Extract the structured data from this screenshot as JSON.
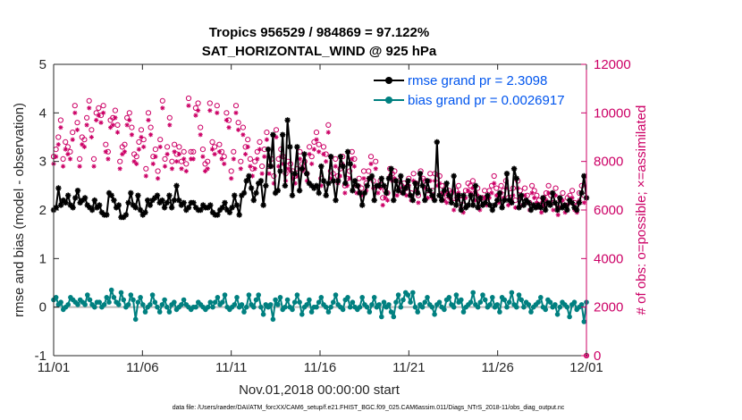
{
  "chart_data": {
    "type": "line",
    "title": "Tropics 956529 / 984869 = 97.122%",
    "subtitle": "SAT_HORIZONTAL_WIND @ 925 hPa",
    "xlabel": "Nov.01,2018 00:00:00 start",
    "ylabel": "rmse and bias (model - observation)",
    "y2label": "# of obs: o=possible; ×=assimilated",
    "footnote": "data file: /Users/raeder/DAI/ATM_forcXX/CAM6_setup/f.e21.FHIST_BGC.f09_025.CAM6assim.011/Diags_NTrS_2018-11/obs_diag_output.nc",
    "xlim": [
      0,
      30
    ],
    "ylim": [
      -1,
      5
    ],
    "y2lim": [
      0,
      12000
    ],
    "x_ticks": [
      0,
      5,
      10,
      15,
      20,
      25,
      30
    ],
    "x_tick_labels": [
      "11/01",
      "11/06",
      "11/11",
      "11/16",
      "11/21",
      "11/26",
      "12/01"
    ],
    "y_ticks": [
      -1,
      0,
      1,
      2,
      3,
      4,
      5
    ],
    "y_tick_labels": [
      "-1",
      "0",
      "1",
      "2",
      "3",
      "4",
      "5"
    ],
    "y2_ticks": [
      0,
      2000,
      4000,
      6000,
      8000,
      10000,
      12000
    ],
    "y2_tick_labels": [
      "0",
      "2000",
      "4000",
      "6000",
      "8000",
      "10000",
      "12000"
    ],
    "zero_line": 0,
    "legend": {
      "location": "top-right",
      "entries": [
        "rmse grand pr = 2.3098",
        "bias grand pr = 0.0026917"
      ]
    },
    "colors": {
      "rmse": "#000000",
      "bias": "#008080",
      "obs": "#cc0066",
      "legend_text": "#0055ee",
      "zero_line": "#bbbbbb"
    },
    "series": [
      {
        "name": "rmse",
        "axis": "left",
        "marker": "asterisk",
        "values": [
          2.0,
          2.05,
          2.45,
          2.1,
          2.2,
          2.15,
          2.3,
          2.1,
          2.05,
          2.25,
          2.4,
          2.15,
          2.2,
          2.25,
          2.1,
          2.05,
          2.0,
          2.2,
          2.05,
          2.1,
          1.95,
          1.9,
          1.9,
          2.35,
          2.3,
          2.2,
          2.05,
          2.1,
          1.85,
          1.85,
          1.9,
          2.15,
          2.35,
          2.1,
          2.05,
          2.3,
          2.0,
          1.9,
          1.95,
          2.2,
          2.1,
          2.2,
          2.25,
          2.3,
          2.15,
          2.2,
          2.05,
          2.15,
          2.3,
          2.05,
          2.2,
          2.5,
          2.2,
          2.1,
          2.15,
          2.0,
          2.05,
          2.15,
          2.15,
          2.05,
          2.0,
          2.0,
          2.1,
          2.05,
          2.05,
          2.1,
          1.95,
          1.9,
          1.9,
          2.0,
          2.05,
          2.15,
          2.0,
          1.95,
          2.05,
          2.3,
          2.1,
          1.9,
          2.3,
          2.35,
          2.6,
          2.7,
          2.45,
          2.2,
          2.35,
          2.55,
          2.6,
          2.1,
          2.5,
          3.25,
          2.9,
          3.55,
          2.35,
          2.4,
          2.8,
          3.55,
          2.5,
          3.85,
          3.3,
          2.3,
          2.75,
          3.3,
          2.4,
          2.85,
          3.15,
          2.75,
          2.55,
          2.5,
          2.45,
          2.5,
          2.35,
          2.9,
          2.6,
          2.3,
          2.55,
          3.1,
          2.6,
          2.2,
          2.6,
          3.1,
          2.9,
          2.55,
          3.2,
          2.95,
          2.4,
          2.6,
          2.5,
          2.35,
          2.1,
          2.35,
          2.5,
          2.65,
          2.7,
          2.2,
          2.5,
          2.5,
          2.65,
          2.5,
          2.35,
          2.65,
          2.85,
          2.2,
          2.6,
          2.4,
          2.7,
          2.35,
          2.45,
          2.6,
          2.3,
          2.2,
          2.55,
          2.35,
          2.75,
          2.5,
          2.2,
          2.6,
          2.4,
          2.3,
          2.2,
          3.4,
          2.3,
          2.2,
          2.4,
          2.55,
          2.3,
          2.15,
          2.7,
          2.1,
          2.3,
          2.0,
          2.3,
          2.05,
          2.1,
          2.3,
          2.1,
          2.5,
          2.05,
          2.25,
          2.1,
          2.15,
          2.3,
          2.1,
          2.0,
          2.1,
          2.2,
          2.35,
          2.05,
          2.2,
          2.75,
          2.2,
          2.15,
          2.85,
          2.65,
          2.05,
          2.3,
          2.1,
          2.2,
          2.15,
          2.0,
          2.1,
          2.05,
          2.1,
          2.05,
          2.25,
          2.0,
          2.15,
          2.1,
          2.35,
          2.15,
          2.0,
          2.25,
          2.05,
          2.1,
          2.0,
          2.2,
          2.15,
          2.05,
          2.0,
          2.15,
          2.35,
          2.7,
          2.25
        ]
      },
      {
        "name": "bias",
        "axis": "left",
        "marker": "circle",
        "values": [
          0.15,
          0.2,
          0.05,
          0.1,
          -0.05,
          0.0,
          0.05,
          0.2,
          0.15,
          0.1,
          0.05,
          0.15,
          0.1,
          0.05,
          0.25,
          0.15,
          0.05,
          0.0,
          0.1,
          0.1,
          0.0,
          0.05,
          0.2,
          0.1,
          0.35,
          0.2,
          0.1,
          0.05,
          0.3,
          0.15,
          0.0,
          0.05,
          0.25,
          0.15,
          -0.25,
          0.1,
          0.2,
          0.05,
          -0.1,
          0.0,
          0.05,
          0.25,
          0.1,
          0.0,
          -0.1,
          0.05,
          0.15,
          0.0,
          -0.1,
          0.05,
          0.1,
          -0.05,
          0.0,
          0.05,
          0.15,
          0.05,
          0.0,
          -0.05,
          0.0,
          0.0,
          0.1,
          0.05,
          0.0,
          -0.05,
          0.0,
          0.1,
          0.0,
          0.1,
          0.2,
          0.05,
          0.1,
          0.25,
          0.0,
          -0.05,
          0.0,
          0.05,
          0.2,
          0.0,
          0.05,
          -0.1,
          0.0,
          0.25,
          0.05,
          0.0,
          0.15,
          0.25,
          0.0,
          -0.15,
          0.05,
          0.0,
          0.05,
          -0.25,
          0.15,
          0.05,
          0.2,
          -0.05,
          0.0,
          0.15,
          0.0,
          -0.05,
          0.1,
          0.25,
          0.1,
          -0.15,
          0.0,
          0.05,
          0.15,
          -0.1,
          0.0,
          0.0,
          0.1,
          0.2,
          0.05,
          0.0,
          -0.1,
          0.0,
          0.1,
          0.25,
          0.05,
          0.0,
          -0.05,
          0.15,
          0.2,
          0.0,
          0.1,
          0.0,
          -0.05,
          0.0,
          0.2,
          0.05,
          0.0,
          -0.1,
          0.05,
          0.2,
          0.0,
          0.05,
          -0.2,
          0.1,
          0.0,
          0.05,
          -0.1,
          -0.2,
          0.1,
          0.25,
          0.0,
          0.15,
          0.3,
          0.25,
          0.1,
          0.3,
          0.0,
          -0.1,
          0.05,
          0.0,
          0.1,
          0.2,
          0.05,
          0.0,
          -0.15,
          0.05,
          0.1,
          0.0,
          -0.05,
          0.15,
          0.2,
          0.05,
          0.0,
          0.25,
          0.1,
          0.15,
          -0.1,
          0.0,
          0.05,
          0.1,
          0.3,
          0.05,
          0.0,
          0.1,
          0.25,
          0.15,
          0.0,
          0.05,
          0.2,
          0.0,
          0.05,
          -0.1,
          0.2,
          0.15,
          0.0,
          0.1,
          0.3,
          0.05,
          0.0,
          0.25,
          0.15,
          0.0,
          0.1,
          0.05,
          -0.1,
          0.0,
          0.05,
          0.1,
          0.2,
          0.0,
          -0.05,
          0.15,
          0.1,
          0.0,
          0.05,
          -0.15,
          0.0,
          0.1,
          0.05,
          0.0,
          -0.2,
          0.05,
          0.1,
          -0.05,
          0.0,
          0.05,
          -0.3,
          0.1
        ]
      },
      {
        "name": "obs possible",
        "axis": "right",
        "marker": "circle-open",
        "values": [
          8200,
          8500,
          9000,
          9700,
          8100,
          8800,
          8600,
          8400,
          9200,
          10300,
          9600,
          8100,
          9000,
          8900,
          9800,
          10500,
          9300,
          8100,
          10000,
          10200,
          9900,
          10300,
          8700,
          8400,
          9700,
          9800,
          10100,
          9500,
          8000,
          8600,
          8700,
          9800,
          10000,
          9400,
          8300,
          8200,
          8800,
          9300,
          8900,
          7700,
          10000,
          9400,
          8200,
          8500,
          7600,
          8900,
          10500,
          8100,
          8600,
          9800,
          8000,
          8700,
          8300,
          8600,
          8000,
          8400,
          7900,
          10600,
          8400,
          8400,
          10200,
          10400,
          9400,
          8500,
          7900,
          8000,
          10400,
          8800,
          8600,
          10300,
          8700,
          8400,
          8200,
          10000,
          9700,
          7600,
          8400,
          10300,
          9600,
          8000,
          9400,
          8600,
          8900,
          8100,
          7700,
          8000,
          8400,
          8800,
          7800,
          8500,
          9200,
          7800,
          8100,
          7400,
          9300,
          8100,
          8500,
          8200,
          7500,
          8000,
          7900,
          7600,
          7400,
          7700,
          8400,
          7900,
          8000,
          7500,
          8600,
          8200,
          8800,
          9200,
          8700,
          7300,
          8600,
          8300,
          9500,
          7600,
          7500,
          8100,
          7400,
          7700,
          8200,
          7000,
          7300,
          7600,
          8400,
          8100,
          7000,
          7300,
          6900,
          7600,
          7100,
          7600,
          8200,
          7200,
          8000,
          7000,
          7200,
          6500,
          6800,
          6700,
          7700,
          7500,
          7600,
          6900,
          7200,
          7000,
          7100,
          6900,
          7300,
          6700,
          7500,
          7100,
          6600,
          7600,
          7300,
          7200,
          6800,
          7500,
          6800,
          7500,
          7300,
          7400,
          7000,
          6700,
          6600,
          6800,
          6700,
          6300,
          6800,
          7000,
          6400,
          6200,
          6800,
          7100,
          7000,
          7200,
          6700,
          6900,
          6300,
          6500,
          6800,
          6500,
          6800,
          7000,
          7400,
          6900,
          6600,
          7000,
          6800,
          7200,
          6500,
          6700,
          6900,
          6400,
          7200,
          6800,
          6500,
          6900,
          6600,
          6300,
          7000,
          6800,
          6600,
          6400,
          6200,
          6500,
          6700,
          7000,
          6600,
          6300,
          6900,
          6100,
          6400,
          6700,
          6200,
          6500,
          6600,
          6800,
          6300,
          6200,
          6700,
          7000,
          6600,
          0
        ]
      },
      {
        "name": "obs assimilated",
        "axis": "right",
        "marker": "asterisk",
        "values": [
          7900,
          8200,
          8700,
          9400,
          7800,
          8500,
          8300,
          8100,
          8900,
          10000,
          9300,
          7800,
          8700,
          8600,
          9500,
          10200,
          9000,
          7800,
          9700,
          9900,
          9600,
          10000,
          8400,
          8100,
          9400,
          9500,
          9800,
          9200,
          7700,
          8300,
          8400,
          9500,
          9700,
          9100,
          8000,
          7900,
          8500,
          9000,
          8600,
          7400,
          9700,
          9100,
          7900,
          8200,
          7300,
          8600,
          10200,
          7800,
          8300,
          9500,
          7700,
          8400,
          8000,
          8300,
          7700,
          8100,
          7600,
          10300,
          8100,
          8100,
          9900,
          10100,
          9100,
          8200,
          7600,
          7700,
          10100,
          8500,
          8300,
          10000,
          8400,
          8100,
          7900,
          9700,
          9400,
          7300,
          8100,
          10000,
          9300,
          7700,
          9100,
          8300,
          8600,
          7800,
          7400,
          7700,
          8100,
          8500,
          7500,
          8200,
          8900,
          7500,
          7800,
          7100,
          9000,
          7800,
          8200,
          7900,
          7200,
          7700,
          7600,
          7300,
          7100,
          7400,
          8100,
          7600,
          7700,
          7200,
          8300,
          7900,
          8500,
          8900,
          8400,
          7000,
          8300,
          8000,
          9200,
          7300,
          7200,
          7800,
          7100,
          7400,
          7900,
          6700,
          7000,
          7300,
          8100,
          7800,
          6700,
          7000,
          6600,
          7300,
          6800,
          7300,
          7900,
          6900,
          7700,
          6700,
          6900,
          6200,
          6500,
          6400,
          7400,
          7200,
          7300,
          6600,
          6900,
          6700,
          6800,
          6600,
          7000,
          6400,
          7200,
          6800,
          6300,
          7300,
          7000,
          6900,
          6500,
          7200,
          6500,
          7200,
          7000,
          7100,
          6700,
          6400,
          6300,
          6500,
          6400,
          6000,
          6500,
          6700,
          6100,
          5900,
          6500,
          6800,
          6700,
          6900,
          6400,
          6600,
          6000,
          6200,
          6500,
          6200,
          6500,
          6700,
          7100,
          6600,
          6300,
          6700,
          6500,
          6900,
          6200,
          6400,
          6600,
          6100,
          6900,
          6500,
          6200,
          6600,
          6300,
          6000,
          6700,
          6500,
          6300,
          6100,
          5900,
          6200,
          6400,
          6700,
          6300,
          6000,
          6600,
          5800,
          6100,
          6400,
          5900,
          6200,
          6300,
          6500,
          6000,
          5900,
          6400,
          6700,
          6300,
          0
        ]
      }
    ]
  }
}
